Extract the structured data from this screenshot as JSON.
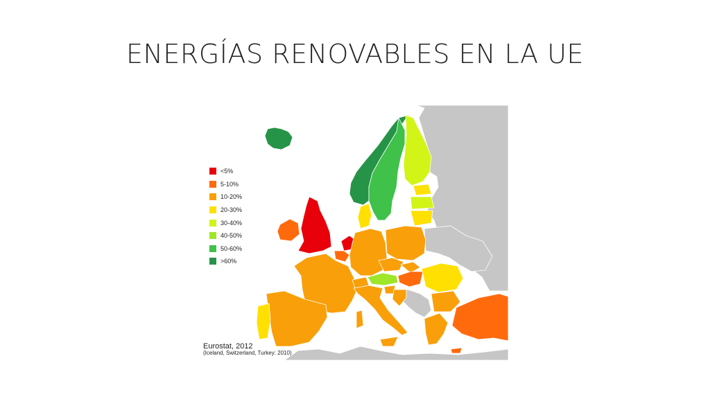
{
  "title": "ENERGÍAS RENOVABLES EN LA UE",
  "legend": {
    "items": [
      {
        "label": "<5%",
        "color": "#e8000b"
      },
      {
        "label": "5-10%",
        "color": "#ff6a0d"
      },
      {
        "label": "10-20%",
        "color": "#f99f0a"
      },
      {
        "label": "20-30%",
        "color": "#ffe000"
      },
      {
        "label": "30-40%",
        "color": "#d2f417"
      },
      {
        "label": "40-50%",
        "color": "#9de62a"
      },
      {
        "label": "50-60%",
        "color": "#3fc14a"
      },
      {
        "label": ">60%",
        "color": "#269447"
      }
    ]
  },
  "source": {
    "main": "Eurostat, 2012",
    "note": "(Iceland, Switzerland, Turkey: 2010)"
  },
  "colors": {
    "non_data": "#c6c6c6",
    "borders": "#ffffff"
  }
}
